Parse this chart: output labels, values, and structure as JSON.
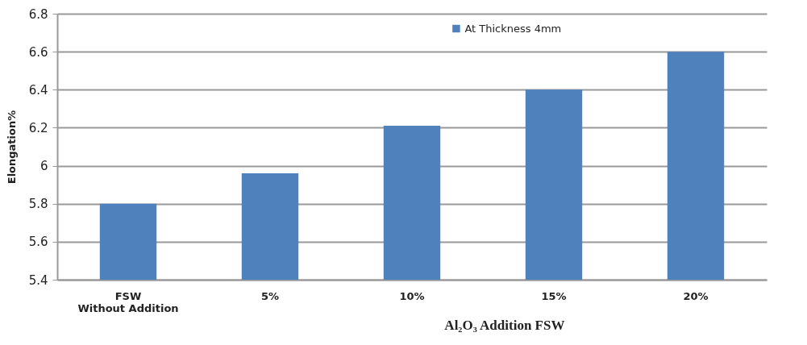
{
  "chart_data": {
    "type": "bar",
    "categories": [
      "FSW\nWithout Addition",
      "5%",
      "10%",
      "15%",
      "20%"
    ],
    "series": [
      {
        "name": "At Thickness 4mm",
        "color": "#4f81bd",
        "values": [
          5.8,
          5.96,
          6.21,
          6.4,
          6.6
        ]
      }
    ],
    "xlabel": "Al₂O₃ Addition FSW",
    "ylabel": "Elongation%",
    "ylim": [
      5.4,
      6.8
    ],
    "yticks": [
      5.4,
      5.6,
      5.8,
      6,
      6.2,
      6.4,
      6.6,
      6.8
    ],
    "grid": "y",
    "legend": "top"
  }
}
